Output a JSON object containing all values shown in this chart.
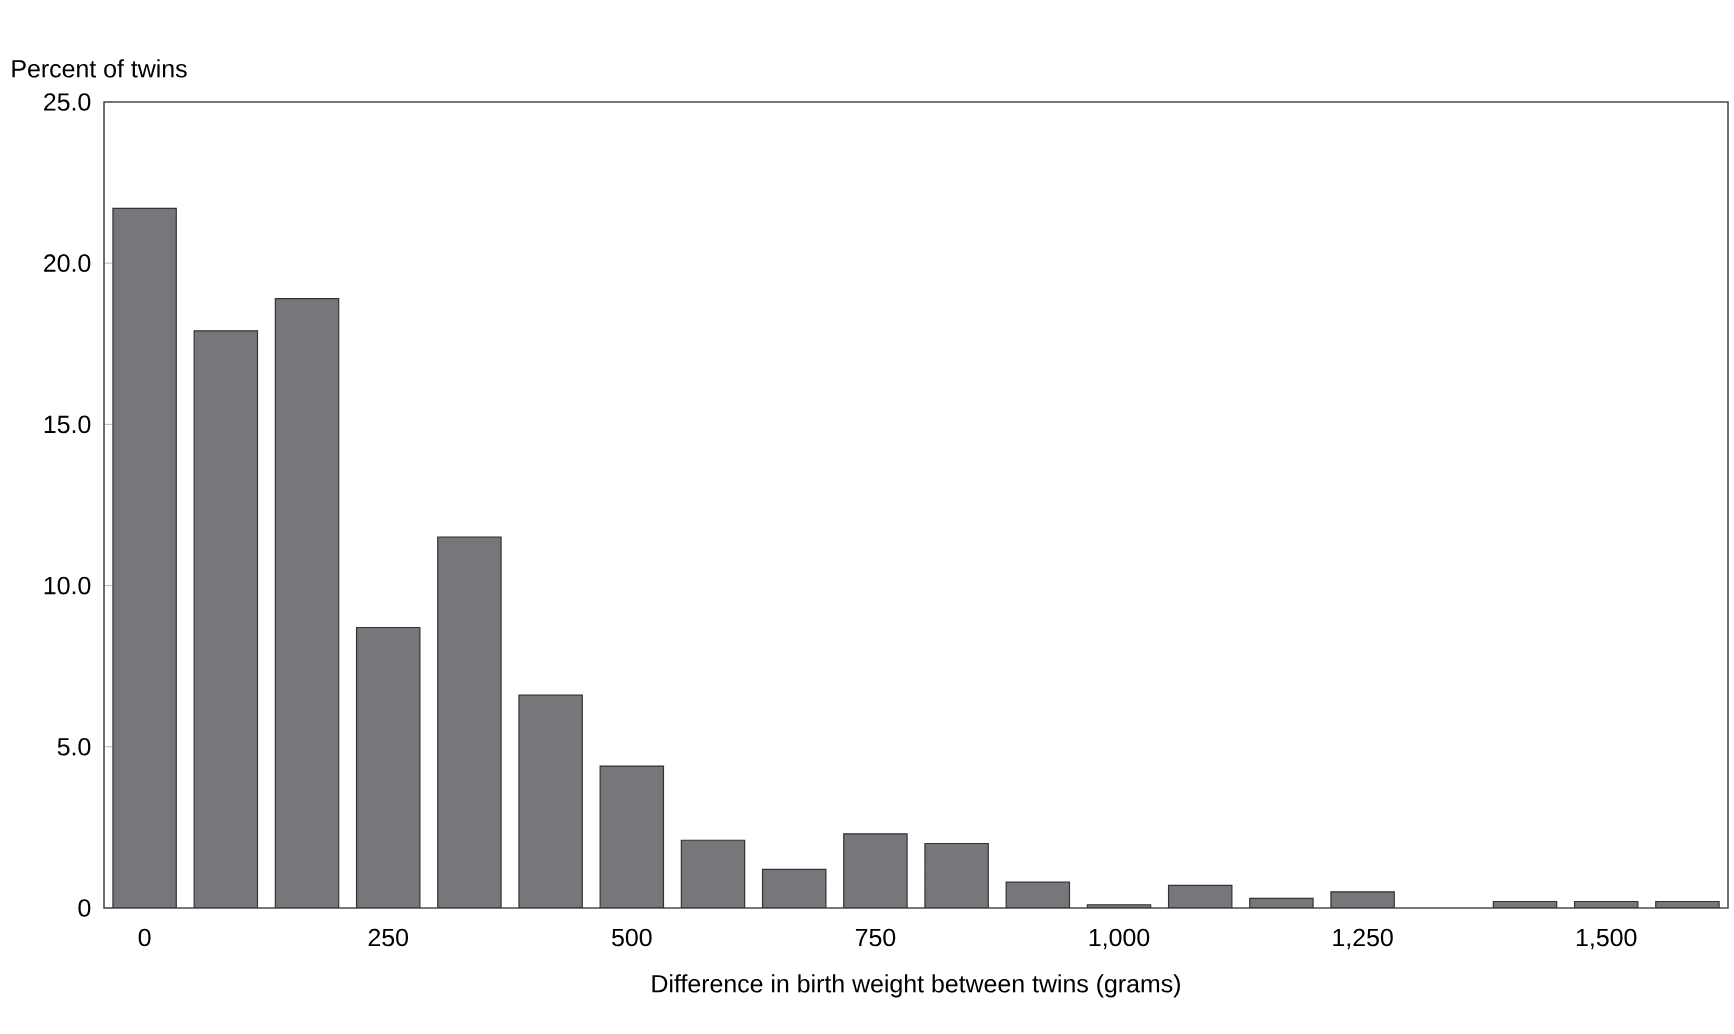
{
  "chart_data": {
    "type": "bar",
    "xlabel": "Difference in birth weight between twins (grams)",
    "ylabel": "Percent of twins",
    "categories": [
      "0",
      null,
      null,
      "250",
      null,
      null,
      "500",
      null,
      null,
      "750",
      null,
      null,
      "1,000",
      null,
      null,
      "1,250",
      null,
      null,
      "1,500",
      null
    ],
    "values": [
      21.7,
      17.9,
      18.9,
      8.7,
      11.5,
      6.6,
      4.4,
      2.1,
      1.2,
      2.3,
      2.0,
      0.8,
      0.1,
      0.7,
      0.3,
      0.5,
      null,
      0.2,
      0.2,
      0.2
    ],
    "color": "#76777b",
    "ylim": [
      0,
      25
    ],
    "yticks": [
      {
        "value": 0,
        "label": "0"
      },
      {
        "value": 5,
        "label": "5.0"
      },
      {
        "value": 10,
        "label": "10.0"
      },
      {
        "value": 15,
        "label": "15.0"
      },
      {
        "value": 20,
        "label": "20.0"
      },
      {
        "value": 25,
        "label": "25.0"
      }
    ],
    "grid": false
  }
}
